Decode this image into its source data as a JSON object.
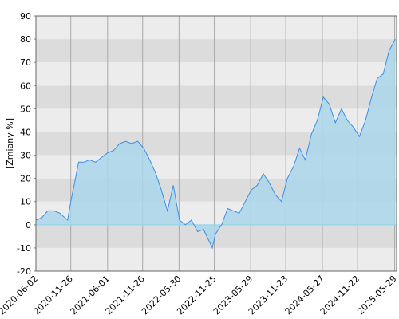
{
  "chart_data": {
    "type": "area_line",
    "y_label": "[Zmiany %]",
    "x": [
      "2020-06-02",
      "2020-07-01",
      "2020-08-01",
      "2020-09-01",
      "2020-10-01",
      "2020-11-10",
      "2020-11-26",
      "2020-12-15",
      "2021-01-05",
      "2021-02-01",
      "2021-03-01",
      "2021-04-01",
      "2021-05-01",
      "2021-06-01",
      "2021-07-01",
      "2021-08-01",
      "2021-09-01",
      "2021-10-01",
      "2021-11-01",
      "2021-12-01",
      "2022-01-01",
      "2022-02-01",
      "2022-03-01",
      "2022-04-01",
      "2022-05-01",
      "2022-06-01",
      "2022-07-01",
      "2022-08-01",
      "2022-09-01",
      "2022-10-01",
      "2022-11-15",
      "2022-12-01",
      "2023-01-01",
      "2023-02-01",
      "2023-03-01",
      "2023-04-01",
      "2023-05-01",
      "2023-06-01",
      "2023-07-01",
      "2023-08-01",
      "2023-09-01",
      "2023-10-01",
      "2023-11-01",
      "2023-12-01",
      "2024-01-01",
      "2024-02-01",
      "2024-03-01",
      "2024-04-01",
      "2024-05-01",
      "2024-06-01",
      "2024-07-01",
      "2024-08-01",
      "2024-09-01",
      "2024-10-01",
      "2024-11-01",
      "2024-12-01",
      "2025-01-01",
      "2025-02-01",
      "2025-03-01",
      "2025-04-01",
      "2025-05-01",
      "2025-06-01"
    ],
    "values": [
      2,
      3,
      6,
      6,
      5,
      2,
      10,
      18,
      27,
      27,
      28,
      27,
      29,
      31,
      32,
      35,
      36,
      35,
      36,
      33,
      28,
      22,
      15,
      6,
      17,
      2,
      0,
      2,
      -3,
      -2,
      -10,
      -4,
      0,
      7,
      6,
      5,
      10,
      15,
      17,
      22,
      18,
      13,
      10,
      20,
      25,
      33,
      28,
      39,
      45,
      55,
      52,
      44,
      50,
      45,
      42,
      38,
      45,
      55,
      63,
      65,
      75,
      80
    ],
    "line_color": "#3c8fe6",
    "area_color": "#a9d6ea",
    "xlim": [
      "2020-06-02",
      "2025-06-08"
    ],
    "xticks": [
      "2020-06-02",
      "2020-11-26",
      "2021-06-01",
      "2021-11-26",
      "2022-05-30",
      "2022-11-25",
      "2023-05-29",
      "2023-11-23",
      "2024-05-27",
      "2024-11-22",
      "2025-05-29"
    ],
    "ylim": [
      -20,
      90
    ],
    "yticks": [
      -20,
      -10,
      0,
      10,
      20,
      30,
      40,
      50,
      60,
      70,
      80,
      90
    ],
    "grid": true
  }
}
